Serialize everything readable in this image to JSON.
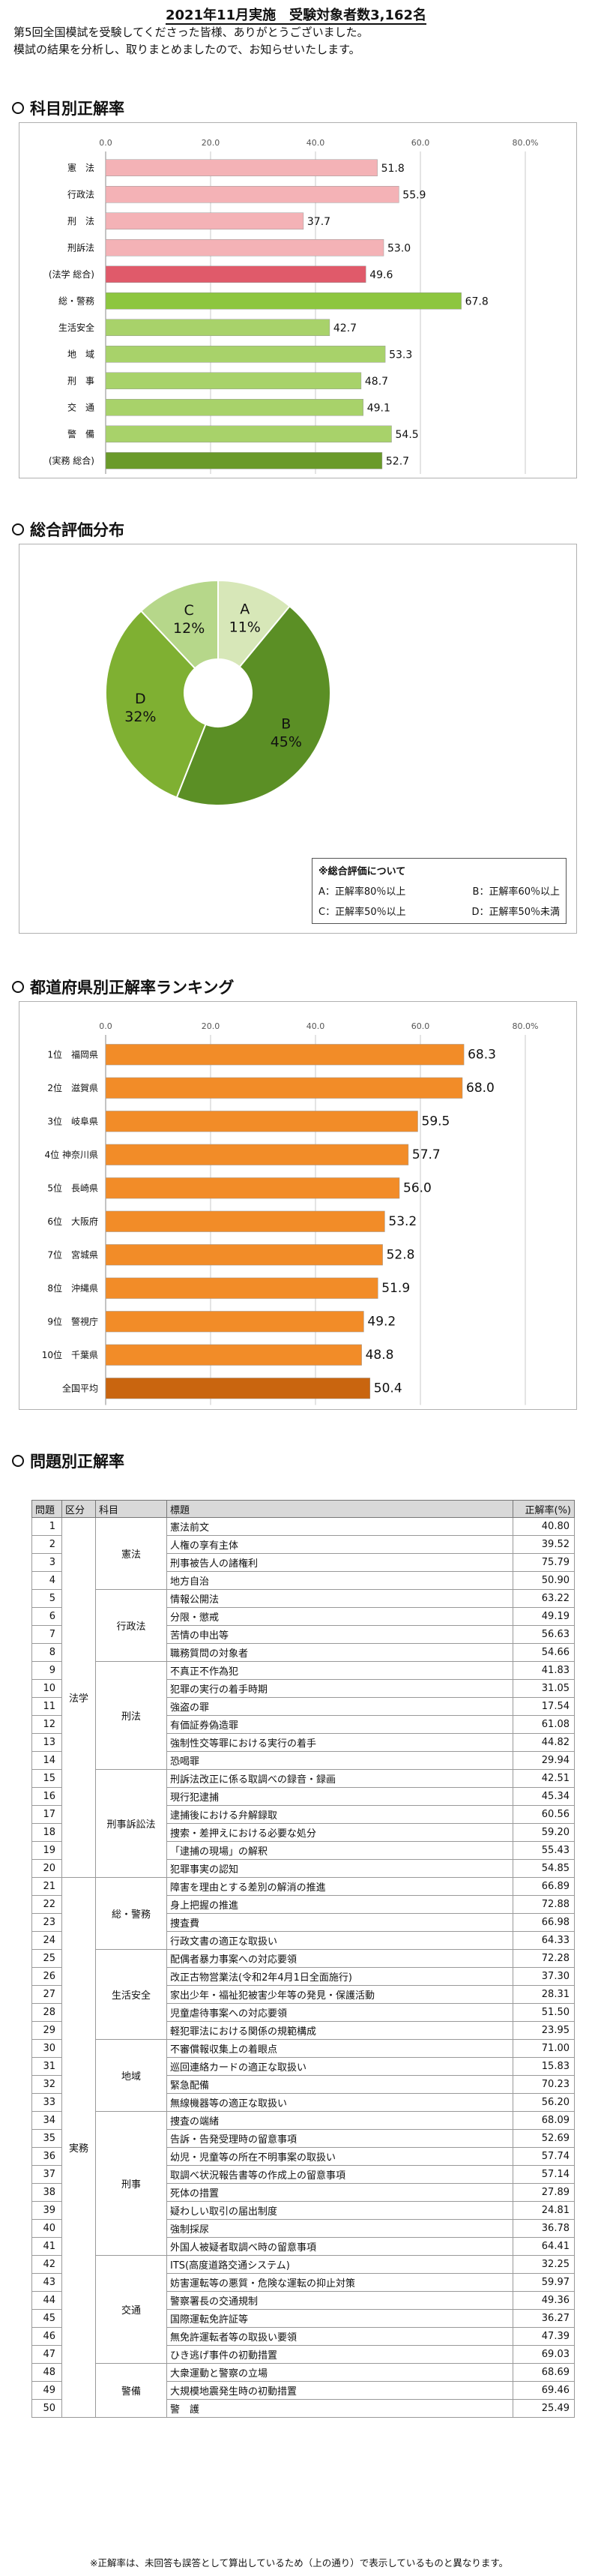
{
  "header": {
    "title": "2021年11月実施　受験対象者数3,162名",
    "intro_1": "第5回全国模試を受験してくださった皆様、ありがとうございました。",
    "intro_2": "模試の結果を分析し、取りまとめましたので、お知らせいたします。"
  },
  "sections": {
    "subject": "科目別正解率",
    "overall": "総合評価分布",
    "pref": "都道府県別正解率ランキング",
    "question": "問題別正解率"
  },
  "chart_data": [
    {
      "type": "bar",
      "title": "科目別正解率",
      "categories": [
        "憲　法",
        "行政法",
        "刑　法",
        "刑訴法",
        "(法学 総合)",
        "総・警務",
        "生活安全",
        "地　域",
        "刑　事",
        "交　通",
        "警　備",
        "(実務 総合)"
      ],
      "values": [
        51.8,
        55.9,
        37.7,
        53.0,
        49.6,
        67.8,
        42.7,
        53.3,
        48.7,
        49.1,
        54.5,
        52.7
      ],
      "xlim": [
        0,
        80
      ],
      "ticks": [
        "0.0",
        "20.0",
        "40.0",
        "60.0",
        "80.0%"
      ],
      "colors": [
        "#f4b2b6",
        "#f4b2b6",
        "#f4b2b6",
        "#f4b2b6",
        "#e05a6a",
        "#8dc63f",
        "#a8d26a",
        "#a8d26a",
        "#a8d26a",
        "#a8d26a",
        "#a8d26a",
        "#6a9a2a"
      ],
      "grid": true
    },
    {
      "type": "pie",
      "title": "総合評価分布",
      "slices": [
        {
          "label": "A",
          "value": 11,
          "color": "#d7e7b8"
        },
        {
          "label": "B",
          "value": 45,
          "color": "#5b8f25"
        },
        {
          "label": "D",
          "value": 32,
          "color": "#7fb032"
        },
        {
          "label": "C",
          "value": 12,
          "color": "#b6d78a"
        }
      ]
    },
    {
      "type": "bar",
      "title": "都道府県別正解率ランキング",
      "categories": [
        "1位　福岡県",
        "2位　滋賀県",
        "3位　岐阜県",
        "4位 神奈川県",
        "5位　長崎県",
        "6位　大阪府",
        "7位　宮城県",
        "8位　沖縄県",
        "9位　警視庁",
        "10位　千葉県",
        "全国平均"
      ],
      "values": [
        68.3,
        68.0,
        59.5,
        57.7,
        56.0,
        53.2,
        52.8,
        51.9,
        49.2,
        48.8,
        50.4
      ],
      "xlim": [
        0,
        80
      ],
      "ticks": [
        "0.0",
        "20.0",
        "40.0",
        "60.0",
        "80.0%"
      ],
      "colors": [
        "#f28c28",
        "#f28c28",
        "#f28c28",
        "#f28c28",
        "#f28c28",
        "#f28c28",
        "#f28c28",
        "#f28c28",
        "#f28c28",
        "#f28c28",
        "#c9650f"
      ],
      "grid": true
    },
    {
      "type": "table",
      "title": "問題別正解率",
      "columns": [
        "問題",
        "区分",
        "科目",
        "標題",
        "正解率(%)"
      ],
      "rows": [
        [
          "1",
          "法学",
          "憲法",
          "憲法前文",
          "40.80"
        ],
        [
          "2",
          "法学",
          "憲法",
          "人権の享有主体",
          "39.52"
        ],
        [
          "3",
          "法学",
          "憲法",
          "刑事被告人の諸権利",
          "75.79"
        ],
        [
          "4",
          "法学",
          "憲法",
          "地方自治",
          "50.90"
        ],
        [
          "5",
          "法学",
          "行政法",
          "情報公開法",
          "63.22"
        ],
        [
          "6",
          "法学",
          "行政法",
          "分限・懲戒",
          "49.19"
        ],
        [
          "7",
          "法学",
          "行政法",
          "苦情の申出等",
          "56.63"
        ],
        [
          "8",
          "法学",
          "行政法",
          "職務質問の対象者",
          "54.66"
        ],
        [
          "9",
          "法学",
          "刑法",
          "不真正不作為犯",
          "41.83"
        ],
        [
          "10",
          "法学",
          "刑法",
          "犯罪の実行の着手時期",
          "31.05"
        ],
        [
          "11",
          "法学",
          "刑法",
          "強盗の罪",
          "17.54"
        ],
        [
          "12",
          "法学",
          "刑法",
          "有価証券偽造罪",
          "61.08"
        ],
        [
          "13",
          "法学",
          "刑法",
          "強制性交等罪における実行の着手",
          "44.82"
        ],
        [
          "14",
          "法学",
          "刑法",
          "恐喝罪",
          "29.94"
        ],
        [
          "15",
          "法学",
          "刑事訴訟法",
          "刑訴法改正に係る取調べの録音・録画",
          "42.51"
        ],
        [
          "16",
          "法学",
          "刑事訴訟法",
          "現行犯逮捕",
          "45.34"
        ],
        [
          "17",
          "法学",
          "刑事訴訟法",
          "逮捕後における弁解録取",
          "60.56"
        ],
        [
          "18",
          "法学",
          "刑事訴訟法",
          "捜索・差押えにおける必要な処分",
          "59.20"
        ],
        [
          "19",
          "法学",
          "刑事訴訟法",
          "「逮捕の現場」の解釈",
          "55.43"
        ],
        [
          "20",
          "法学",
          "刑事訴訟法",
          "犯罪事実の認知",
          "54.85"
        ],
        [
          "21",
          "実務",
          "総・警務",
          "障害を理由とする差別の解消の推進",
          "66.89"
        ],
        [
          "22",
          "実務",
          "総・警務",
          "身上把握の推進",
          "72.88"
        ],
        [
          "23",
          "実務",
          "総・警務",
          "捜査費",
          "66.98"
        ],
        [
          "24",
          "実務",
          "総・警務",
          "行政文書の適正な取扱い",
          "64.33"
        ],
        [
          "25",
          "実務",
          "生活安全",
          "配偶者暴力事案への対応要領",
          "72.28"
        ],
        [
          "26",
          "実務",
          "生活安全",
          "改正古物営業法(令和2年4月1日全面施行)",
          "37.30"
        ],
        [
          "27",
          "実務",
          "生活安全",
          "家出少年・福祉犯被害少年等の発見・保護活動",
          "28.31"
        ],
        [
          "28",
          "実務",
          "生活安全",
          "児童虐待事案への対応要領",
          "51.50"
        ],
        [
          "29",
          "実務",
          "生活安全",
          "軽犯罪法における関係の規範構成",
          "23.95"
        ],
        [
          "30",
          "実務",
          "地域",
          "不審償報収集上の着眼点",
          "71.00"
        ],
        [
          "31",
          "実務",
          "地域",
          "巡回連絡カードの適正な取扱い",
          "15.83"
        ],
        [
          "32",
          "実務",
          "地域",
          "緊急配備",
          "70.23"
        ],
        [
          "33",
          "実務",
          "地域",
          "無線機器等の適正な取扱い",
          "56.20"
        ],
        [
          "34",
          "実務",
          "刑事",
          "捜査の端緒",
          "68.09"
        ],
        [
          "35",
          "実務",
          "刑事",
          "告訴・告発受理時の留意事項",
          "52.69"
        ],
        [
          "36",
          "実務",
          "刑事",
          "幼児・児童等の所在不明事案の取扱い",
          "57.74"
        ],
        [
          "37",
          "実務",
          "刑事",
          "取調べ状況報告書等の作成上の留意事項",
          "57.14"
        ],
        [
          "38",
          "実務",
          "刑事",
          "死体の措置",
          "27.89"
        ],
        [
          "39",
          "実務",
          "刑事",
          "疑わしい取引の届出制度",
          "24.81"
        ],
        [
          "40",
          "実務",
          "刑事",
          "強制採尿",
          "36.78"
        ],
        [
          "41",
          "実務",
          "刑事",
          "外国人被疑者取調べ時の留意事項",
          "64.41"
        ],
        [
          "42",
          "実務",
          "交通",
          "ITS(高度道路交通システム)",
          "32.25"
        ],
        [
          "43",
          "実務",
          "交通",
          "妨害運転等の悪質・危険な運転の抑止対策",
          "59.97"
        ],
        [
          "44",
          "実務",
          "交通",
          "警察署長の交通規制",
          "49.36"
        ],
        [
          "45",
          "実務",
          "交通",
          "国際運転免許証等",
          "36.27"
        ],
        [
          "46",
          "実務",
          "交通",
          "無免許運転者等の取扱い要領",
          "47.39"
        ],
        [
          "47",
          "実務",
          "交通",
          "ひき逃げ事件の初動措置",
          "69.03"
        ],
        [
          "48",
          "実務",
          "警備",
          "大衆運動と警察の立場",
          "68.69"
        ],
        [
          "49",
          "実務",
          "警備",
          "大規模地震発生時の初動措置",
          "69.46"
        ],
        [
          "50",
          "実務",
          "警備",
          "警　護",
          "25.49"
        ]
      ]
    }
  ],
  "legend": {
    "title": "※総合評価について",
    "a": "A：正解率80％以上",
    "b": "B：正解率60％以上",
    "c": "C：正解率50％以上",
    "d": "D：正解率50％未満"
  },
  "footnote": "※正解率は、未回答も誤答として算出しているため（上の通り）で表示しているものと異なります。"
}
